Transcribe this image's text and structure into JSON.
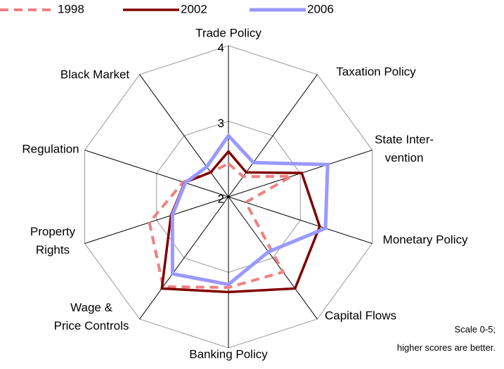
{
  "chart_data": {
    "type": "radar",
    "categories": [
      "Trade Policy",
      "Taxation Policy",
      "State Inter-\nvention",
      "Monetary Policy",
      "Capital Flows",
      "Banking Policy",
      "Wage &\nPrice Controls",
      "Property\nRights",
      "Regulation",
      "Black Market"
    ],
    "series": [
      {
        "name": "1998",
        "color": "#f08080",
        "dashed": true,
        "values": [
          2.44,
          2.33,
          2.88,
          2.24,
          3.23,
          3.2,
          3.47,
          3.1,
          2.63,
          2.4
        ]
      },
      {
        "name": "2002",
        "color": "#800000",
        "values": [
          2.6,
          2.4,
          3.02,
          3.27,
          3.5,
          3.26,
          3.5,
          2.8,
          2.61,
          2.4
        ]
      },
      {
        "name": "2006",
        "color": "#9999ff",
        "values": [
          2.81,
          2.56,
          3.38,
          3.35,
          2.9,
          3.16,
          3.26,
          2.78,
          2.6,
          2.49
        ]
      }
    ],
    "ylim": [
      2,
      4
    ],
    "yticks": [
      2,
      3,
      4
    ],
    "grid": true,
    "note": "Scale 0-5;\nhigher scores are better."
  }
}
